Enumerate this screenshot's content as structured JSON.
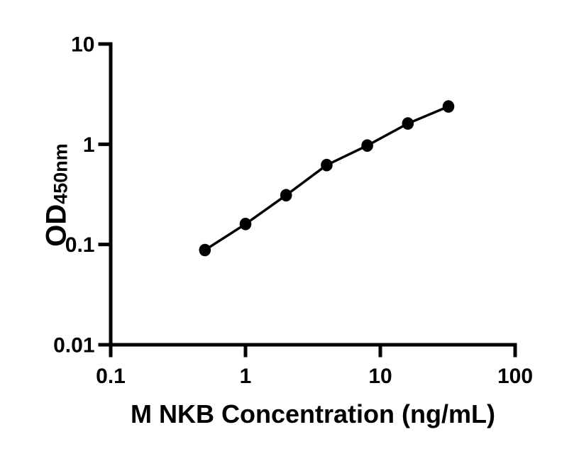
{
  "figure": {
    "background": "#ffffff",
    "xlabel": "M NKB Concentration (ng/mL)",
    "ylabel_main": "OD",
    "ylabel_sub": "450nm"
  },
  "chart_data": {
    "type": "scatter",
    "title": "",
    "xlabel": "M NKB Concentration (ng/mL)",
    "ylabel": "OD450nm",
    "x_scale": "log",
    "y_scale": "log",
    "xlim": [
      0.1,
      100
    ],
    "ylim": [
      0.01,
      10
    ],
    "x": [
      0.5,
      1,
      2,
      4,
      8,
      16,
      32
    ],
    "y": [
      0.088,
      0.16,
      0.31,
      0.62,
      0.97,
      1.61,
      2.38
    ],
    "x_ticks": [
      {
        "value": 0.1,
        "label": "0.1"
      },
      {
        "value": 1,
        "label": "1"
      },
      {
        "value": 10,
        "label": "10"
      },
      {
        "value": 100,
        "label": "100"
      }
    ],
    "y_ticks": [
      {
        "value": 10,
        "label": "10"
      },
      {
        "value": 1,
        "label": "1"
      },
      {
        "value": 0.1,
        "label": "0.1"
      },
      {
        "value": 0.01,
        "label": "0.01"
      }
    ],
    "grid": false,
    "legend": null,
    "line_color": "#000000",
    "marker_color": "#000000",
    "axis_color": "#000000",
    "tick_label_fontsize": 30,
    "axis_title_fontsize": 36
  }
}
